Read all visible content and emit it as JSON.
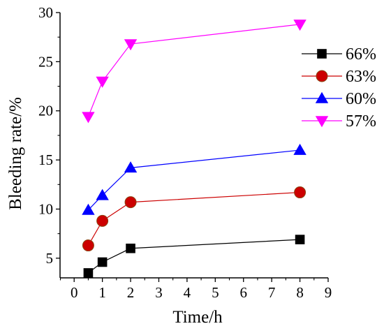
{
  "chart_data": {
    "type": "line",
    "xlabel": "Time/h",
    "ylabel": "Bleeding rate/%",
    "xlim": [
      -0.5,
      9
    ],
    "ylim": [
      3,
      30
    ],
    "x_ticks": [
      0,
      1,
      2,
      3,
      4,
      5,
      6,
      7,
      8,
      9
    ],
    "y_ticks": [
      5,
      10,
      15,
      20,
      25,
      30
    ],
    "legend_position": "top-right",
    "grid": false,
    "series": [
      {
        "name": "66%",
        "color": "#000000",
        "marker": "square",
        "x": [
          0.5,
          1,
          2,
          8
        ],
        "y": [
          3.5,
          4.6,
          6.0,
          6.9
        ]
      },
      {
        "name": "63%",
        "color": "#cc0000",
        "marker": "circle",
        "x": [
          0.5,
          1,
          2,
          8
        ],
        "y": [
          6.3,
          8.8,
          10.7,
          11.7
        ]
      },
      {
        "name": "60%",
        "color": "#0000ff",
        "marker": "triangle-up",
        "x": [
          0.5,
          1,
          2,
          8
        ],
        "y": [
          9.9,
          11.4,
          14.2,
          16.0
        ]
      },
      {
        "name": "57%",
        "color": "#ff00ff",
        "marker": "triangle-down",
        "x": [
          0.5,
          1,
          2,
          8
        ],
        "y": [
          19.4,
          23.0,
          26.8,
          28.8
        ]
      }
    ]
  }
}
